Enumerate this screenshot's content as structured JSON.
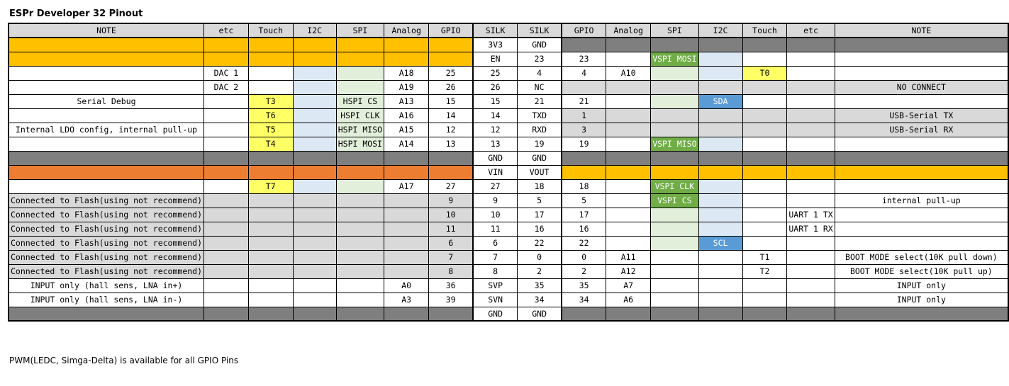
{
  "title": "ESPr Developer 32 Pinout",
  "footer": "PWM(LEDC, Simga-Delta) is available for all GPIO Pins",
  "headers": [
    "NOTE",
    "etc",
    "Touch",
    "I2C",
    "SPI",
    "Analog",
    "GPIO",
    "SILK",
    "SILK",
    "GPIO",
    "Analog",
    "SPI",
    "I2C",
    "Touch",
    "etc",
    "NOTE"
  ],
  "colors": {
    "power": "#ffc000",
    "vin": "#ed7d31",
    "ground": "#7f7f7f",
    "unavailable": "#d9d9d9",
    "i2c": "#dde8f5",
    "spi": "#e2efda",
    "touch": "#ffff66",
    "vspi": "#70ad47",
    "i2c_active": "#5b9bd5"
  },
  "rows": [
    {
      "cells": [
        "",
        "",
        "",
        "",
        "",
        "",
        "",
        "3V3",
        "GND",
        "",
        "",
        "",
        "",
        "",
        "",
        ""
      ],
      "bg": [
        "orange",
        "orange",
        "orange",
        "orange",
        "orange",
        "orange",
        "orange",
        "",
        "",
        "dark",
        "dark",
        "dark",
        "dark",
        "dark",
        "dark",
        "dark"
      ]
    },
    {
      "cells": [
        "",
        "",
        "",
        "",
        "",
        "",
        "",
        "EN",
        "23",
        "23",
        "",
        "VSPI MOSI",
        "",
        "",
        "",
        ""
      ],
      "bg": [
        "orange",
        "orange",
        "orange",
        "orange",
        "orange",
        "orange",
        "orange",
        "",
        "",
        "",
        "",
        "vgreen",
        "blue",
        "",
        "",
        ""
      ]
    },
    {
      "cells": [
        "",
        "DAC 1",
        "",
        "",
        "",
        "A18",
        "25",
        "25",
        "4",
        "4",
        "A10",
        "",
        "",
        "T0",
        "",
        ""
      ],
      "bg": [
        "",
        "",
        "",
        "blue",
        "green",
        "",
        "",
        "",
        "",
        "",
        "",
        "green",
        "blue",
        "yellow",
        "",
        ""
      ]
    },
    {
      "cells": [
        "",
        "DAC 2",
        "",
        "",
        "",
        "A19",
        "26",
        "26",
        "NC",
        "",
        "",
        "",
        "",
        "",
        "",
        "NO CONNECT"
      ],
      "bg": [
        "",
        "",
        "",
        "blue",
        "green",
        "",
        "",
        "",
        "",
        "gray",
        "gray",
        "gray",
        "gray",
        "gray",
        "gray",
        "gray"
      ]
    },
    {
      "cells": [
        "Serial Debug",
        "",
        "T3",
        "",
        "HSPI CS",
        "A13",
        "15",
        "15",
        "21",
        "21",
        "",
        "",
        "SDA",
        "",
        "",
        ""
      ],
      "bg": [
        "",
        "",
        "yellow",
        "blue",
        "green",
        "",
        "",
        "",
        "",
        "",
        "",
        "green",
        "sblue",
        "",
        "",
        ""
      ]
    },
    {
      "cells": [
        "",
        "",
        "T6",
        "",
        "HSPI CLK",
        "A16",
        "14",
        "14",
        "TXD",
        "1",
        "",
        "",
        "",
        "",
        "",
        "USB-Serial TX"
      ],
      "bg": [
        "",
        "",
        "yellow",
        "blue",
        "green",
        "",
        "",
        "",
        "",
        "gray",
        "gray",
        "gray",
        "gray",
        "gray",
        "gray",
        "gray"
      ]
    },
    {
      "cells": [
        "Internal LDO config, internal pull-up",
        "",
        "T5",
        "",
        "HSPI MISO",
        "A15",
        "12",
        "12",
        "RXD",
        "3",
        "",
        "",
        "",
        "",
        "",
        "USB-Serial RX"
      ],
      "bg": [
        "",
        "",
        "yellow",
        "blue",
        "green",
        "",
        "",
        "",
        "",
        "gray",
        "gray",
        "gray",
        "gray",
        "gray",
        "gray",
        "gray"
      ]
    },
    {
      "cells": [
        "",
        "",
        "T4",
        "",
        "HSPI MOSI",
        "A14",
        "13",
        "13",
        "19",
        "19",
        "",
        "VSPI MISO",
        "",
        "",
        "",
        ""
      ],
      "bg": [
        "",
        "",
        "yellow",
        "blue",
        "green",
        "",
        "",
        "",
        "",
        "",
        "",
        "vgreen",
        "blue",
        "",
        "",
        ""
      ]
    },
    {
      "cells": [
        "",
        "",
        "",
        "",
        "",
        "",
        "",
        "GND",
        "GND",
        "",
        "",
        "",
        "",
        "",
        "",
        ""
      ],
      "bg": [
        "dark",
        "dark",
        "dark",
        "dark",
        "dark",
        "dark",
        "dark",
        "",
        "",
        "dark",
        "dark",
        "dark",
        "dark",
        "dark",
        "dark",
        "dark"
      ]
    },
    {
      "cells": [
        "",
        "",
        "",
        "",
        "",
        "",
        "",
        "VIN",
        "VOUT",
        "",
        "",
        "",
        "",
        "",
        "",
        ""
      ],
      "bg": [
        "dorange",
        "dorange",
        "dorange",
        "dorange",
        "dorange",
        "dorange",
        "dorange",
        "",
        "",
        "orange",
        "orange",
        "orange",
        "orange",
        "orange",
        "orange",
        "orange"
      ]
    },
    {
      "cells": [
        "",
        "",
        "T7",
        "",
        "",
        "A17",
        "27",
        "27",
        "18",
        "18",
        "",
        "VSPI CLK",
        "",
        "",
        "",
        ""
      ],
      "bg": [
        "",
        "",
        "yellow",
        "blue",
        "green",
        "",
        "",
        "",
        "",
        "",
        "",
        "vgreen",
        "blue",
        "",
        "",
        ""
      ]
    },
    {
      "cells": [
        "Connected to Flash(using not recommend)",
        "",
        "",
        "",
        "",
        "",
        "9",
        "9",
        "5",
        "5",
        "",
        "VSPI CS",
        "",
        "",
        "",
        "internal pull-up"
      ],
      "bg": [
        "gray",
        "gray",
        "gray",
        "gray",
        "gray",
        "gray",
        "gray",
        "",
        "",
        "",
        "",
        "vgreen",
        "blue",
        "",
        "",
        ""
      ]
    },
    {
      "cells": [
        "Connected to Flash(using not recommend)",
        "",
        "",
        "",
        "",
        "",
        "10",
        "10",
        "17",
        "17",
        "",
        "",
        "",
        "",
        "UART 1 TX",
        ""
      ],
      "bg": [
        "gray",
        "gray",
        "gray",
        "gray",
        "gray",
        "gray",
        "gray",
        "",
        "",
        "",
        "",
        "green",
        "blue",
        "",
        "",
        ""
      ]
    },
    {
      "cells": [
        "Connected to Flash(using not recommend)",
        "",
        "",
        "",
        "",
        "",
        "11",
        "11",
        "16",
        "16",
        "",
        "",
        "",
        "",
        "UART 1 RX",
        ""
      ],
      "bg": [
        "gray",
        "gray",
        "gray",
        "gray",
        "gray",
        "gray",
        "gray",
        "",
        "",
        "",
        "",
        "green",
        "blue",
        "",
        "",
        ""
      ]
    },
    {
      "cells": [
        "Connected to Flash(using not recommend)",
        "",
        "",
        "",
        "",
        "",
        "6",
        "6",
        "22",
        "22",
        "",
        "",
        "SCL",
        "",
        "",
        ""
      ],
      "bg": [
        "gray",
        "gray",
        "gray",
        "gray",
        "gray",
        "gray",
        "gray",
        "",
        "",
        "",
        "",
        "green",
        "sblue",
        "",
        "",
        ""
      ]
    },
    {
      "cells": [
        "Connected to Flash(using not recommend)",
        "",
        "",
        "",
        "",
        "",
        "7",
        "7",
        "0",
        "0",
        "A11",
        "",
        "",
        "T1",
        "",
        "BOOT MODE select(10K pull down)"
      ],
      "bg": [
        "gray",
        "gray",
        "gray",
        "gray",
        "gray",
        "gray",
        "gray",
        "",
        "",
        "",
        "",
        "",
        "",
        "",
        "",
        ""
      ]
    },
    {
      "cells": [
        "Connected to Flash(using not recommend)",
        "",
        "",
        "",
        "",
        "",
        "8",
        "8",
        "2",
        "2",
        "A12",
        "",
        "",
        "T2",
        "",
        "BOOT MODE select(10K pull up)"
      ],
      "bg": [
        "gray",
        "gray",
        "gray",
        "gray",
        "gray",
        "gray",
        "gray",
        "",
        "",
        "",
        "",
        "",
        "",
        "",
        "",
        ""
      ]
    },
    {
      "cells": [
        "INPUT only (hall sens, LNA in+)",
        "",
        "",
        "",
        "",
        "A0",
        "36",
        "SVP",
        "35",
        "35",
        "A7",
        "",
        "",
        "",
        "",
        "INPUT only"
      ],
      "bg": [
        "",
        "",
        "",
        "",
        "",
        "",
        "",
        "",
        "",
        "",
        "",
        "",
        "",
        "",
        "",
        ""
      ]
    },
    {
      "cells": [
        "INPUT only (hall sens, LNA in-)",
        "",
        "",
        "",
        "",
        "A3",
        "39",
        "SVN",
        "34",
        "34",
        "A6",
        "",
        "",
        "",
        "",
        "INPUT only"
      ],
      "bg": [
        "",
        "",
        "",
        "",
        "",
        "",
        "",
        "",
        "",
        "",
        "",
        "",
        "",
        "",
        "",
        ""
      ]
    },
    {
      "cells": [
        "",
        "",
        "",
        "",
        "",
        "",
        "",
        "GND",
        "GND",
        "",
        "",
        "",
        "",
        "",
        "",
        ""
      ],
      "bg": [
        "dark",
        "dark",
        "dark",
        "dark",
        "dark",
        "dark",
        "dark",
        "",
        "",
        "dark",
        "dark",
        "dark",
        "dark",
        "dark",
        "dark",
        "dark"
      ]
    }
  ]
}
